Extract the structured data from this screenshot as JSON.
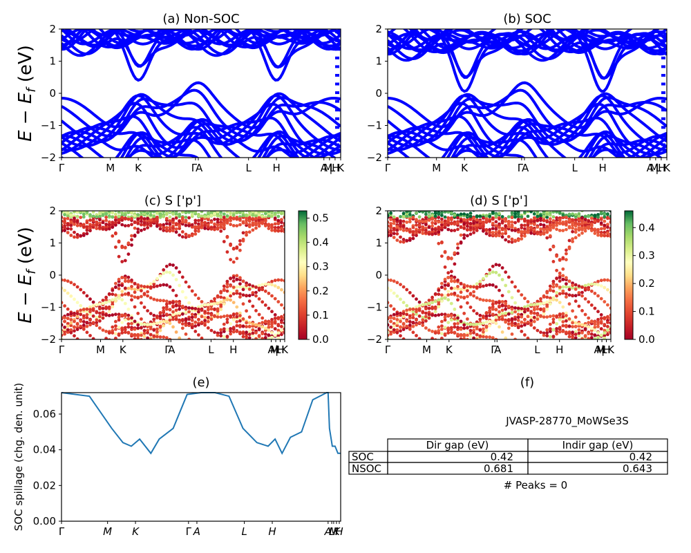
{
  "panels": {
    "a": {
      "title": "(a) Non-SOC"
    },
    "b": {
      "title": "(b) SOC"
    },
    "c": {
      "title": "(c)  S ['p']"
    },
    "d": {
      "title": "(d) S ['p']"
    },
    "e": {
      "title": "(e)"
    },
    "f": {
      "title": "(f)"
    }
  },
  "band_ylabel": "E − E_f (eV)",
  "kpath_labels": [
    "Γ",
    "M",
    "K",
    "Γ",
    "A",
    "L",
    "H",
    "A",
    "M",
    "L",
    "H",
    "K"
  ],
  "colors": {
    "bands": "#0000ff",
    "spillage": "#1f77b4",
    "cmap": "RdYlGn"
  },
  "chart_data": [
    {
      "id": "a",
      "type": "line",
      "title": "(a) Non-SOC",
      "ylabel": "E − E_f (eV)",
      "ylim": [
        -2,
        2
      ],
      "yticks": [
        "−2",
        "−1",
        "0",
        "1",
        "2"
      ],
      "xticks": [
        "Γ",
        "M",
        "K",
        "ΓA",
        "L",
        "H",
        "A",
        "M|L",
        "H",
        "K"
      ],
      "series": [
        {
          "values": [
            2.0,
            1.9,
            1.6,
            0.65,
            1.7,
            1.95,
            1.9,
            1.6,
            0.65,
            1.7,
            2.0
          ]
        },
        {
          "values": [
            -0.05,
            -0.5,
            -0.6,
            -0.05,
            -0.5,
            -1.8,
            -0.6,
            -0.05,
            -0.5,
            -0.8
          ]
        }
      ]
    },
    {
      "id": "b",
      "type": "line",
      "title": "(b) SOC",
      "ylabel": "",
      "ylim": [
        -2,
        2
      ],
      "yticks": [
        "−2",
        "−1",
        "0",
        "1",
        "2"
      ],
      "xticks": [
        "Γ",
        "M",
        "K",
        "ΓA",
        "L",
        "H",
        "A",
        "M|L",
        "H",
        "K"
      ],
      "series": [
        {
          "values": [
            1.7,
            1.6,
            1.5,
            0.45,
            1.5,
            1.9,
            1.7,
            1.5,
            0.45,
            1.5,
            1.8
          ]
        },
        {
          "values": [
            -0.2,
            -0.5,
            -0.7,
            -0.05,
            -0.6,
            -1.6,
            -0.6,
            -0.05,
            -0.6,
            -0.8
          ]
        }
      ]
    },
    {
      "id": "c",
      "type": "scatter",
      "title": "(c)  S ['p']",
      "ylabel": "E − E_f (eV)",
      "ylim": [
        -2,
        2
      ],
      "yticks": [
        "−2",
        "−1",
        "0",
        "1",
        "2"
      ],
      "xticks": [
        "Γ",
        "M",
        "K",
        "ΓA",
        "L",
        "H",
        "A",
        "M|L",
        "H",
        "K"
      ],
      "colorbar": {
        "range": [
          0.0,
          0.53
        ],
        "ticks": [
          "0.0",
          "0.1",
          "0.2",
          "0.3",
          "0.4",
          "0.5"
        ],
        "cmap": "RdYlGn"
      }
    },
    {
      "id": "d",
      "type": "scatter",
      "title": "(d) S ['p']",
      "ylabel": "",
      "ylim": [
        -2,
        2
      ],
      "yticks": [
        "−2",
        "−1",
        "0",
        "1",
        "2"
      ],
      "xticks": [
        "Γ",
        "M",
        "K",
        "ΓA",
        "L",
        "H",
        "A",
        "M|L",
        "H",
        "K"
      ],
      "colorbar": {
        "range": [
          0.0,
          0.46
        ],
        "ticks": [
          "0.0",
          "0.1",
          "0.2",
          "0.3",
          "0.4"
        ],
        "cmap": "RdYlGn"
      }
    },
    {
      "id": "e",
      "type": "line",
      "title": "(e)",
      "ylabel": "SOC spillage (chg. den. unit)",
      "ylim": [
        0.0,
        0.072
      ],
      "yticks": [
        "0.00",
        "0.02",
        "0.04",
        "0.06"
      ],
      "xticks": [
        "Γ",
        "M",
        "K",
        "ΓA",
        "L",
        "H",
        "AL",
        "M",
        "K",
        "H"
      ],
      "x": [
        0.0,
        0.1,
        0.18,
        0.22,
        0.25,
        0.28,
        0.32,
        0.35,
        0.4,
        0.45,
        0.5,
        0.55,
        0.6,
        0.65,
        0.7,
        0.74,
        0.765,
        0.79,
        0.82,
        0.86,
        0.9,
        0.95,
        0.955,
        0.96,
        0.97,
        0.98,
        0.99,
        1.0
      ],
      "series": [
        {
          "name": "",
          "values": [
            0.072,
            0.07,
            0.052,
            0.044,
            0.042,
            0.046,
            0.038,
            0.046,
            0.052,
            0.071,
            0.072,
            0.072,
            0.07,
            0.052,
            0.044,
            0.042,
            0.046,
            0.038,
            0.047,
            0.05,
            0.068,
            0.072,
            0.072,
            0.052,
            0.042,
            0.042,
            0.038,
            0.038
          ]
        }
      ]
    }
  ],
  "table": {
    "caption": "JVASP-28770_MoWSe3S",
    "headers": [
      "",
      "Dir gap (eV)",
      "Indir gap (eV)"
    ],
    "rows": [
      [
        "SOC",
        "0.42",
        "0.42"
      ],
      [
        "NSOC",
        "0.681",
        "0.643"
      ]
    ],
    "footer": "# Peaks = 0"
  }
}
